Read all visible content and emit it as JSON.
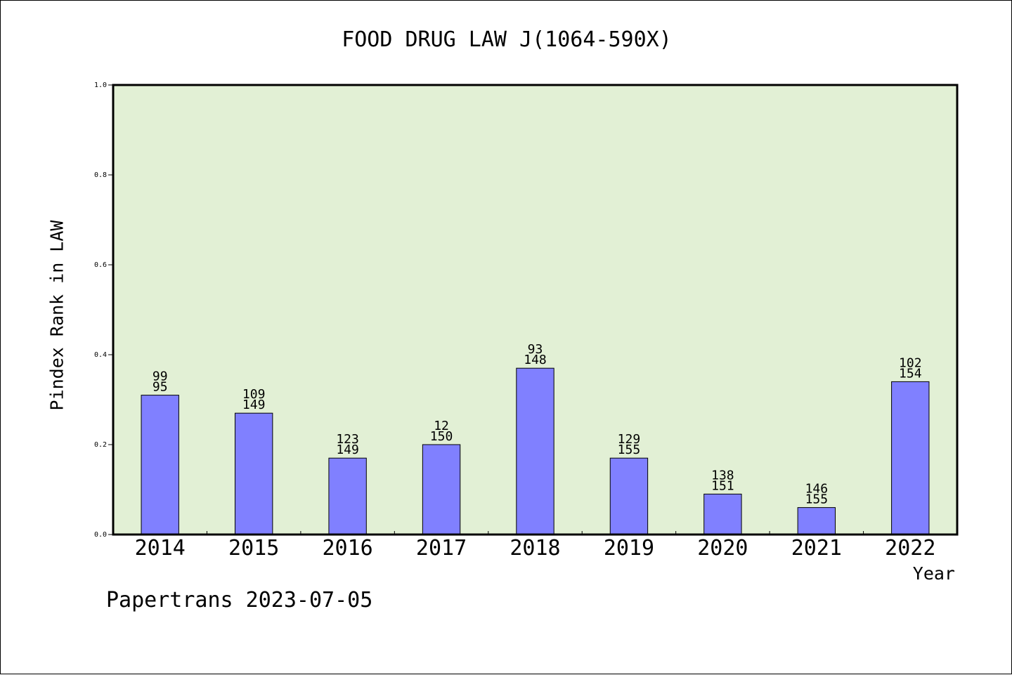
{
  "chart_data": {
    "type": "bar",
    "title": "FOOD DRUG LAW J(1064-590X)",
    "xlabel": "Year",
    "ylabel": "Pindex Rank in LAW",
    "categories": [
      "2014",
      "2015",
      "2016",
      "2017",
      "2018",
      "2019",
      "2020",
      "2021",
      "2022"
    ],
    "values": [
      0.31,
      0.27,
      0.17,
      0.2,
      0.37,
      0.17,
      0.09,
      0.06,
      0.34
    ],
    "bar_labels_top": [
      "99",
      "109",
      "123",
      "12",
      "93",
      "129",
      "138",
      "146",
      "102"
    ],
    "bar_labels_bottom": [
      "95",
      "149",
      "149",
      "150",
      "148",
      "155",
      "151",
      "155",
      "154"
    ],
    "ylim": [
      0,
      1.0
    ],
    "yticks": [
      "0.0",
      "0.2",
      "0.4",
      "0.6",
      "0.8",
      "1.0"
    ],
    "grid": false,
    "bar_color": "#8080ff",
    "plot_background": "#e2f0d5"
  },
  "footer": "Papertrans 2023-07-05"
}
